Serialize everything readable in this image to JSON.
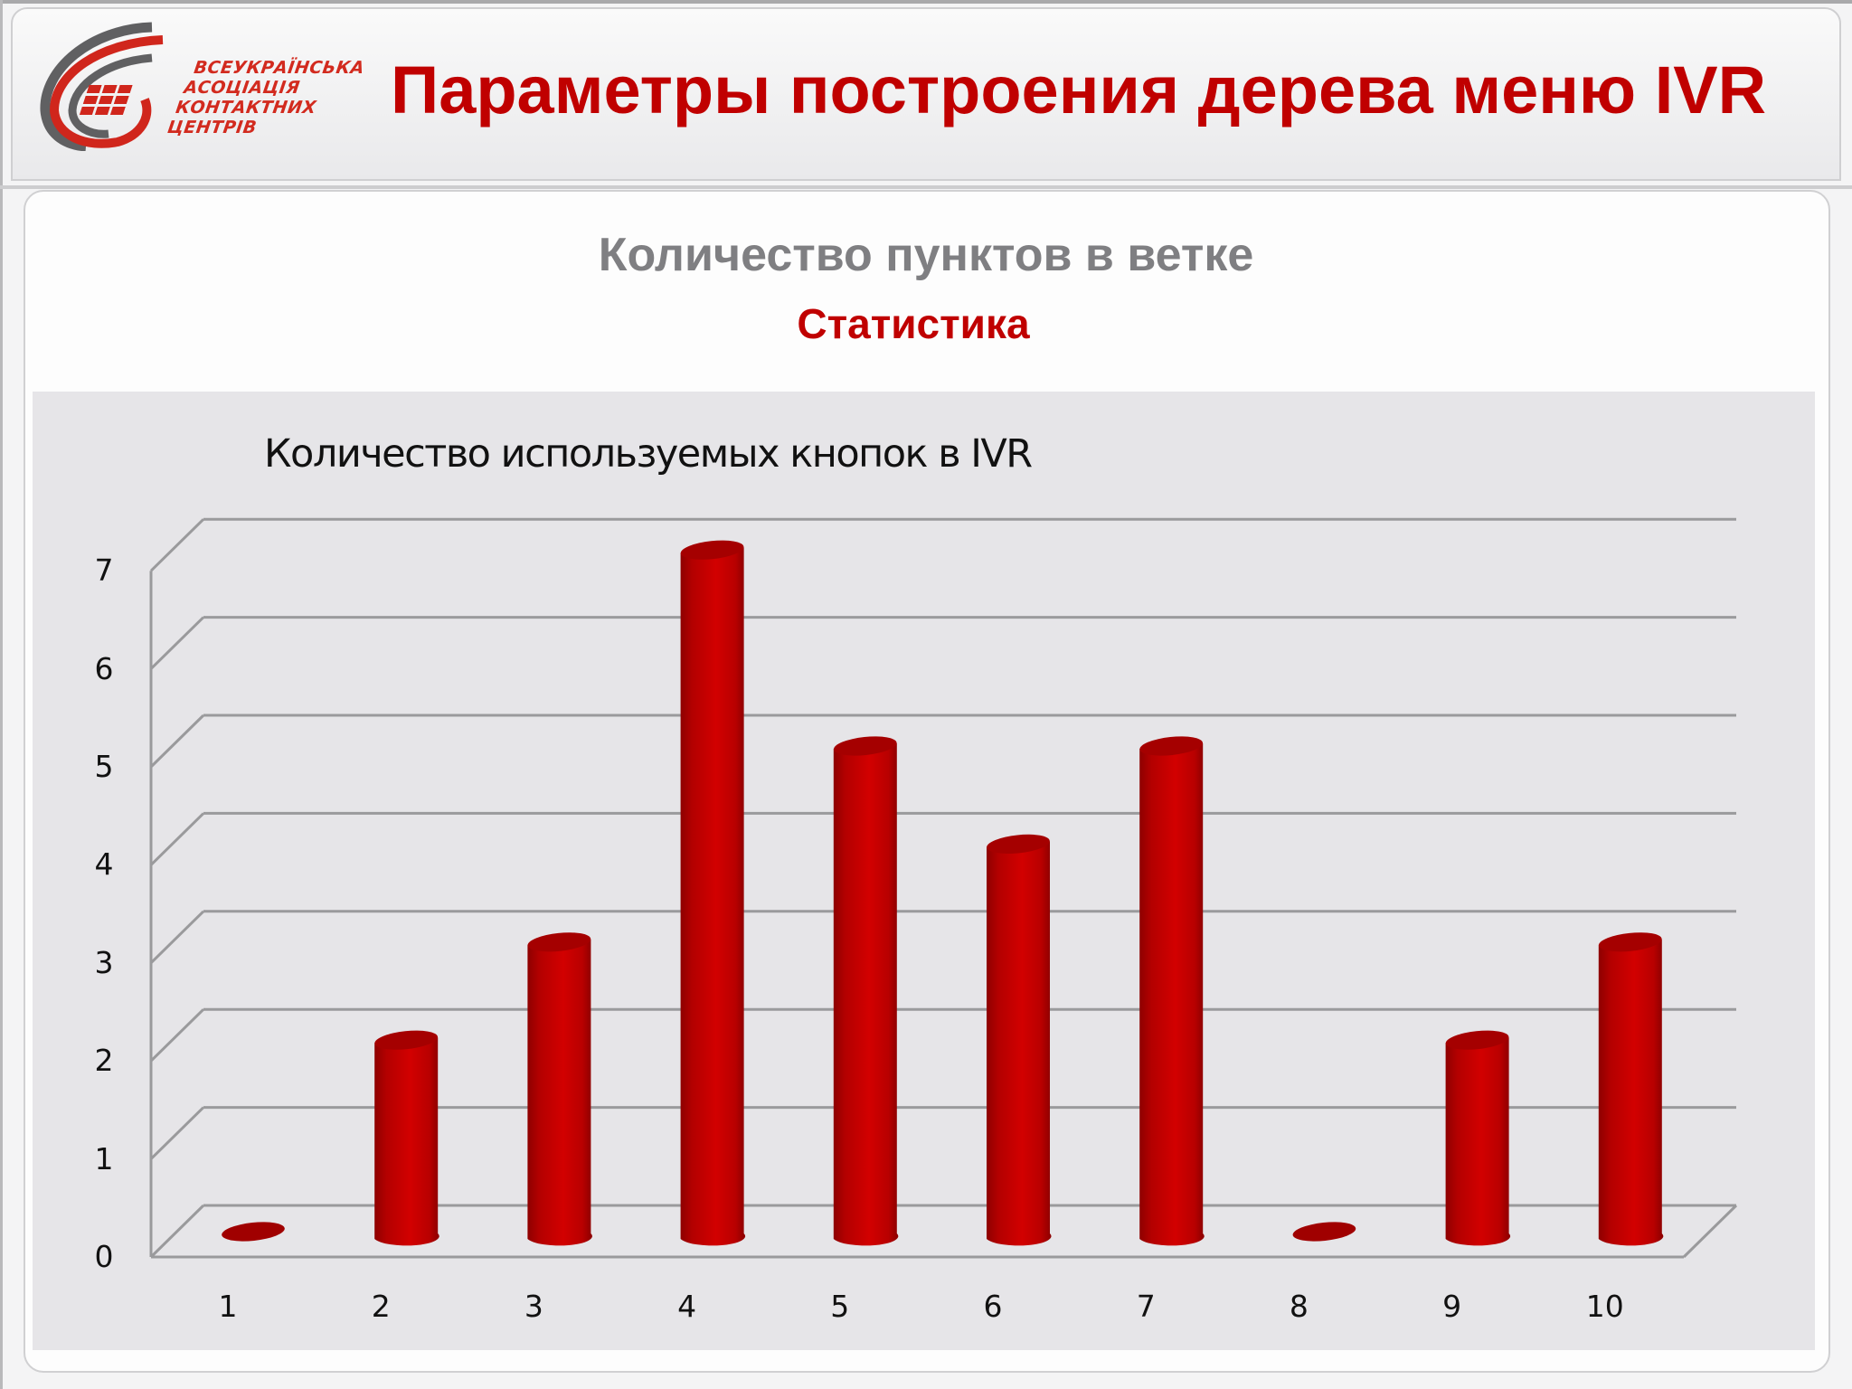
{
  "header": {
    "logo": {
      "lines": [
        "ВСЕУКРАЇНСЬКА",
        "АСОЦІАЦІЯ",
        "КОНТАКТНИХ",
        "ЦЕНТРІВ"
      ]
    },
    "title": "Параметры построения дерева меню IVR"
  },
  "panel": {
    "title": "Количество пунктов в ветке",
    "subtitle": "Статистика"
  },
  "colors": {
    "accent": "#c00000",
    "bar": "#c80000",
    "title_gray": "#7f7f82",
    "chart_bg": "#e6e5e8",
    "gridline": "#9a9a9c"
  },
  "chart_data": {
    "type": "bar",
    "style": "3d-cylinder",
    "title": "Количество используемых кнопок в IVR",
    "categories": [
      "1",
      "2",
      "3",
      "4",
      "5",
      "6",
      "7",
      "8",
      "9",
      "10"
    ],
    "values": [
      0,
      2,
      3,
      7,
      5,
      4,
      5,
      0,
      2,
      3
    ],
    "xlabel": "",
    "ylabel": "",
    "ylim": [
      0,
      7
    ],
    "yticks": [
      "0",
      "1",
      "2",
      "3",
      "4",
      "5",
      "6",
      "7"
    ],
    "grid": true,
    "legend": "none"
  }
}
